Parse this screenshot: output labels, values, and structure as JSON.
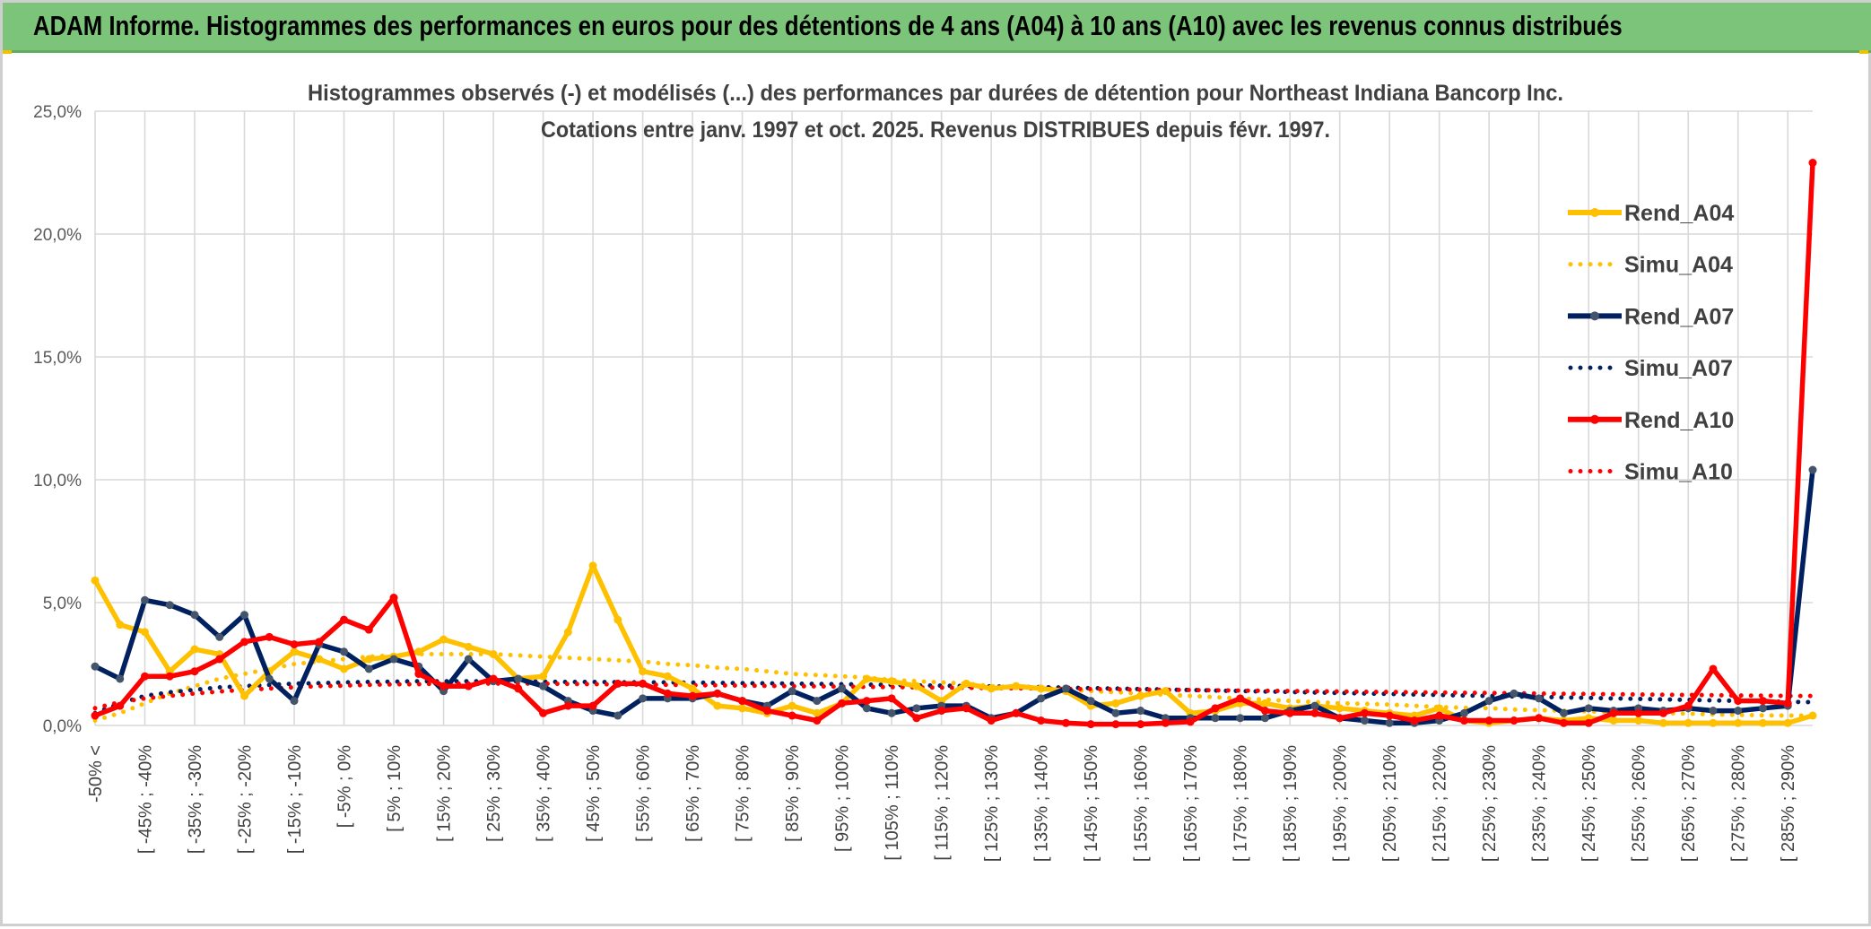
{
  "header": {
    "title": "ADAM Informe. Histogrammes des performances en euros pour des détentions de 4 ans (A04) à 10 ans (A10) avec les revenus connus distribués"
  },
  "chart_data": {
    "type": "line",
    "title": "Histogrammes observés (-) et modélisés (...) des performances par durées de détention pour Northeast Indiana Bancorp Inc.",
    "subtitle": "Cotations entre janv. 1997 et oct. 2025. Revenus DISTRIBUES depuis févr. 1997.",
    "xlabel": "",
    "ylabel": "",
    "ylim": [
      0,
      25
    ],
    "yticks": [
      0,
      5,
      10,
      15,
      20,
      25
    ],
    "ytick_labels": [
      "0,0%",
      "5,0%",
      "10,0%",
      "15,0%",
      "20,0%",
      "25,0%"
    ],
    "grid": true,
    "legend_position": "right",
    "x_tick_labels": [
      "-50% <",
      "[ -45% ; -40%",
      "[ -35% ; -30%",
      "[ -25% ; -20%",
      "[ -15% ; -10%",
      "[ -5% ; 0%",
      "[ 5% ; 10%",
      "[ 15% ; 20%",
      "[ 25% ; 30%",
      "[ 35% ; 40%",
      "[ 45% ; 50%",
      "[ 55% ; 60%",
      "[ 65% ; 70%",
      "[ 75% ; 80%",
      "[ 85% ; 90%",
      "[ 95% ; 100%",
      "[ 105% ; 110%",
      "[ 115% ; 120%",
      "[ 125% ; 130%",
      "[ 135% ; 140%",
      "[ 145% ; 150%",
      "[ 155% ; 160%",
      "[ 165% ; 170%",
      "[ 175% ; 180%",
      "[ 185% ; 190%",
      "[ 195% ; 200%",
      "[ 205% ; 210%",
      "[ 215% ; 220%",
      "[ 225% ; 230%",
      "[ 235% ; 240%",
      "[ 245% ; 250%",
      "[ 255% ; 260%",
      "[ 265% ; 270%",
      "[ 275% ; 280%",
      "[ 285% ; 290%"
    ],
    "n_points": 70,
    "series": [
      {
        "name": "Rend_A04",
        "style": "solid",
        "color": "#ffc000",
        "values": [
          5.9,
          4.1,
          3.8,
          2.2,
          3.1,
          2.9,
          1.2,
          2.2,
          3.0,
          2.7,
          2.3,
          2.7,
          2.8,
          3.0,
          3.5,
          3.2,
          2.9,
          1.9,
          2.0,
          3.8,
          6.5,
          4.3,
          2.2,
          2.0,
          1.5,
          0.8,
          0.7,
          0.5,
          0.8,
          0.5,
          0.9,
          1.9,
          1.8,
          1.6,
          1.0,
          1.7,
          1.5,
          1.6,
          1.5,
          1.4,
          0.8,
          0.9,
          1.2,
          1.4,
          0.5,
          0.6,
          0.9,
          0.9,
          0.7,
          0.8,
          0.7,
          0.6,
          0.5,
          0.4,
          0.7,
          0.2,
          0.1,
          0.2,
          0.3,
          0.2,
          0.3,
          0.2,
          0.2,
          0.1,
          0.1,
          0.1,
          0.1,
          0.1,
          0.1,
          0.4
        ]
      },
      {
        "name": "Simu_A04",
        "style": "dotted",
        "color": "#ffc000",
        "values": [
          0.2,
          0.5,
          0.9,
          1.3,
          1.6,
          1.9,
          2.1,
          2.3,
          2.5,
          2.6,
          2.7,
          2.8,
          2.85,
          2.9,
          2.9,
          2.9,
          2.9,
          2.85,
          2.8,
          2.75,
          2.7,
          2.65,
          2.6,
          2.5,
          2.45,
          2.35,
          2.3,
          2.2,
          2.1,
          2.05,
          2.0,
          1.95,
          1.85,
          1.8,
          1.75,
          1.7,
          1.6,
          1.55,
          1.5,
          1.45,
          1.4,
          1.35,
          1.3,
          1.25,
          1.2,
          1.15,
          1.1,
          1.05,
          1.0,
          0.95,
          0.9,
          0.88,
          0.85,
          0.8,
          0.75,
          0.72,
          0.7,
          0.65,
          0.62,
          0.6,
          0.57,
          0.55,
          0.52,
          0.5,
          0.48,
          0.45,
          0.43,
          0.41,
          0.4,
          0.4
        ]
      },
      {
        "name": "Rend_A07",
        "style": "solid",
        "color": "#002060",
        "values": [
          2.4,
          1.9,
          5.1,
          4.9,
          4.5,
          3.6,
          4.5,
          1.9,
          1.0,
          3.3,
          3.0,
          2.3,
          2.7,
          2.4,
          1.4,
          2.7,
          1.8,
          1.9,
          1.6,
          1.0,
          0.6,
          0.4,
          1.1,
          1.1,
          1.1,
          1.3,
          1.0,
          0.8,
          1.4,
          1.0,
          1.5,
          0.7,
          0.5,
          0.7,
          0.8,
          0.8,
          0.3,
          0.5,
          1.1,
          1.5,
          1.0,
          0.5,
          0.6,
          0.3,
          0.3,
          0.3,
          0.3,
          0.3,
          0.6,
          0.8,
          0.3,
          0.2,
          0.1,
          0.1,
          0.2,
          0.5,
          1.0,
          1.3,
          1.1,
          0.5,
          0.7,
          0.6,
          0.7,
          0.6,
          0.7,
          0.6,
          0.6,
          0.7,
          0.8,
          10.4
        ]
      },
      {
        "name": "Simu_A07",
        "style": "dotted",
        "color": "#002060",
        "values": [
          0.5,
          0.9,
          1.2,
          1.35,
          1.45,
          1.55,
          1.6,
          1.65,
          1.7,
          1.72,
          1.75,
          1.77,
          1.78,
          1.8,
          1.8,
          1.8,
          1.8,
          1.8,
          1.78,
          1.77,
          1.77,
          1.76,
          1.75,
          1.75,
          1.74,
          1.73,
          1.72,
          1.71,
          1.7,
          1.69,
          1.68,
          1.66,
          1.65,
          1.63,
          1.62,
          1.6,
          1.59,
          1.57,
          1.56,
          1.54,
          1.52,
          1.5,
          1.48,
          1.46,
          1.44,
          1.42,
          1.4,
          1.38,
          1.36,
          1.34,
          1.32,
          1.3,
          1.28,
          1.26,
          1.24,
          1.22,
          1.2,
          1.18,
          1.16,
          1.14,
          1.12,
          1.1,
          1.08,
          1.06,
          1.04,
          1.02,
          1.0,
          0.98,
          0.96,
          0.95
        ]
      },
      {
        "name": "Rend_A10",
        "style": "solid",
        "color": "#ff0000",
        "values": [
          0.4,
          0.8,
          2.0,
          2.0,
          2.2,
          2.7,
          3.4,
          3.6,
          3.3,
          3.4,
          4.3,
          3.9,
          5.2,
          2.1,
          1.6,
          1.6,
          1.9,
          1.5,
          0.5,
          0.8,
          0.8,
          1.7,
          1.7,
          1.3,
          1.2,
          1.3,
          1.0,
          0.6,
          0.4,
          0.2,
          0.9,
          1.0,
          1.1,
          0.3,
          0.6,
          0.7,
          0.2,
          0.5,
          0.2,
          0.1,
          0.05,
          0.05,
          0.05,
          0.1,
          0.15,
          0.7,
          1.1,
          0.6,
          0.5,
          0.5,
          0.3,
          0.5,
          0.4,
          0.2,
          0.4,
          0.2,
          0.2,
          0.2,
          0.3,
          0.1,
          0.1,
          0.5,
          0.5,
          0.5,
          0.8,
          2.3,
          1.0,
          1.0,
          0.9,
          22.9
        ]
      },
      {
        "name": "Simu_A10",
        "style": "dotted",
        "color": "#ff0000",
        "values": [
          0.7,
          0.95,
          1.1,
          1.2,
          1.3,
          1.38,
          1.45,
          1.5,
          1.55,
          1.6,
          1.62,
          1.65,
          1.67,
          1.68,
          1.7,
          1.7,
          1.7,
          1.7,
          1.7,
          1.69,
          1.68,
          1.67,
          1.66,
          1.65,
          1.64,
          1.63,
          1.62,
          1.61,
          1.6,
          1.59,
          1.58,
          1.57,
          1.56,
          1.55,
          1.54,
          1.53,
          1.52,
          1.51,
          1.5,
          1.49,
          1.48,
          1.47,
          1.46,
          1.45,
          1.44,
          1.43,
          1.42,
          1.41,
          1.4,
          1.39,
          1.38,
          1.37,
          1.36,
          1.35,
          1.34,
          1.33,
          1.32,
          1.31,
          1.3,
          1.29,
          1.28,
          1.27,
          1.26,
          1.25,
          1.24,
          1.23,
          1.22,
          1.21,
          1.2,
          1.2
        ]
      }
    ]
  }
}
